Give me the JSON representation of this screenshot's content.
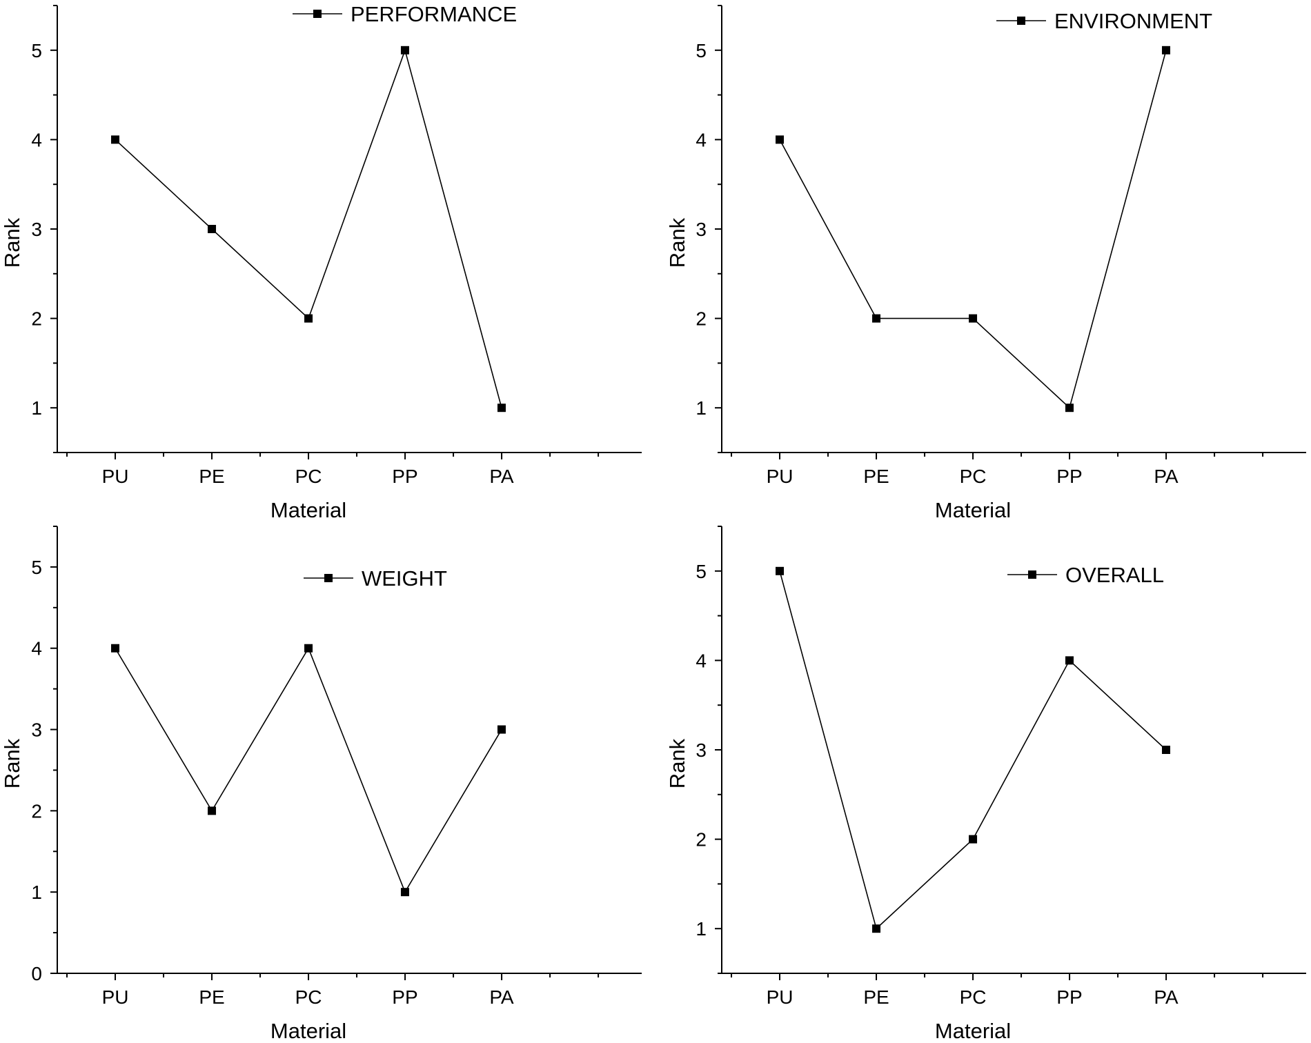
{
  "chart_data": [
    {
      "type": "line",
      "title": "",
      "xlabel": "Material",
      "ylabel": "Rank",
      "categories": [
        "PU",
        "PE",
        "PC",
        "PP",
        "PA"
      ],
      "ylim": [
        0.5,
        5.5
      ],
      "yticks": [
        1,
        2,
        3,
        4,
        5
      ],
      "grid": false,
      "legend": "top-center",
      "series": [
        {
          "name": "PERFORMANCE",
          "values": [
            4,
            3,
            2,
            5,
            1
          ]
        }
      ]
    },
    {
      "type": "line",
      "title": "",
      "xlabel": "Material",
      "ylabel": "Rank",
      "categories": [
        "PU",
        "PE",
        "PC",
        "PP",
        "PA"
      ],
      "ylim": [
        0.5,
        5.5
      ],
      "yticks": [
        1,
        2,
        3,
        4,
        5
      ],
      "grid": false,
      "legend": "top-right",
      "series": [
        {
          "name": "ENVIRONMENT",
          "values": [
            4,
            2,
            2,
            1,
            5
          ]
        }
      ]
    },
    {
      "type": "line",
      "title": "",
      "xlabel": "Material",
      "ylabel": "Rank",
      "categories": [
        "PU",
        "PE",
        "PC",
        "PP",
        "PA"
      ],
      "ylim": [
        0,
        5.5
      ],
      "yticks": [
        0,
        1,
        2,
        3,
        4,
        5
      ],
      "grid": false,
      "legend": "top-center",
      "series": [
        {
          "name": "WEIGHT",
          "values": [
            4,
            2,
            4,
            1,
            3
          ]
        }
      ]
    },
    {
      "type": "line",
      "title": "",
      "xlabel": "Material",
      "ylabel": "Rank",
      "categories": [
        "PU",
        "PE",
        "PC",
        "PP",
        "PA"
      ],
      "ylim": [
        0.5,
        5.5
      ],
      "yticks": [
        1,
        2,
        3,
        4,
        5
      ],
      "grid": false,
      "legend": "top-center",
      "series": [
        {
          "name": "OVERALL",
          "values": [
            5,
            1,
            2,
            4,
            3
          ]
        }
      ]
    }
  ]
}
